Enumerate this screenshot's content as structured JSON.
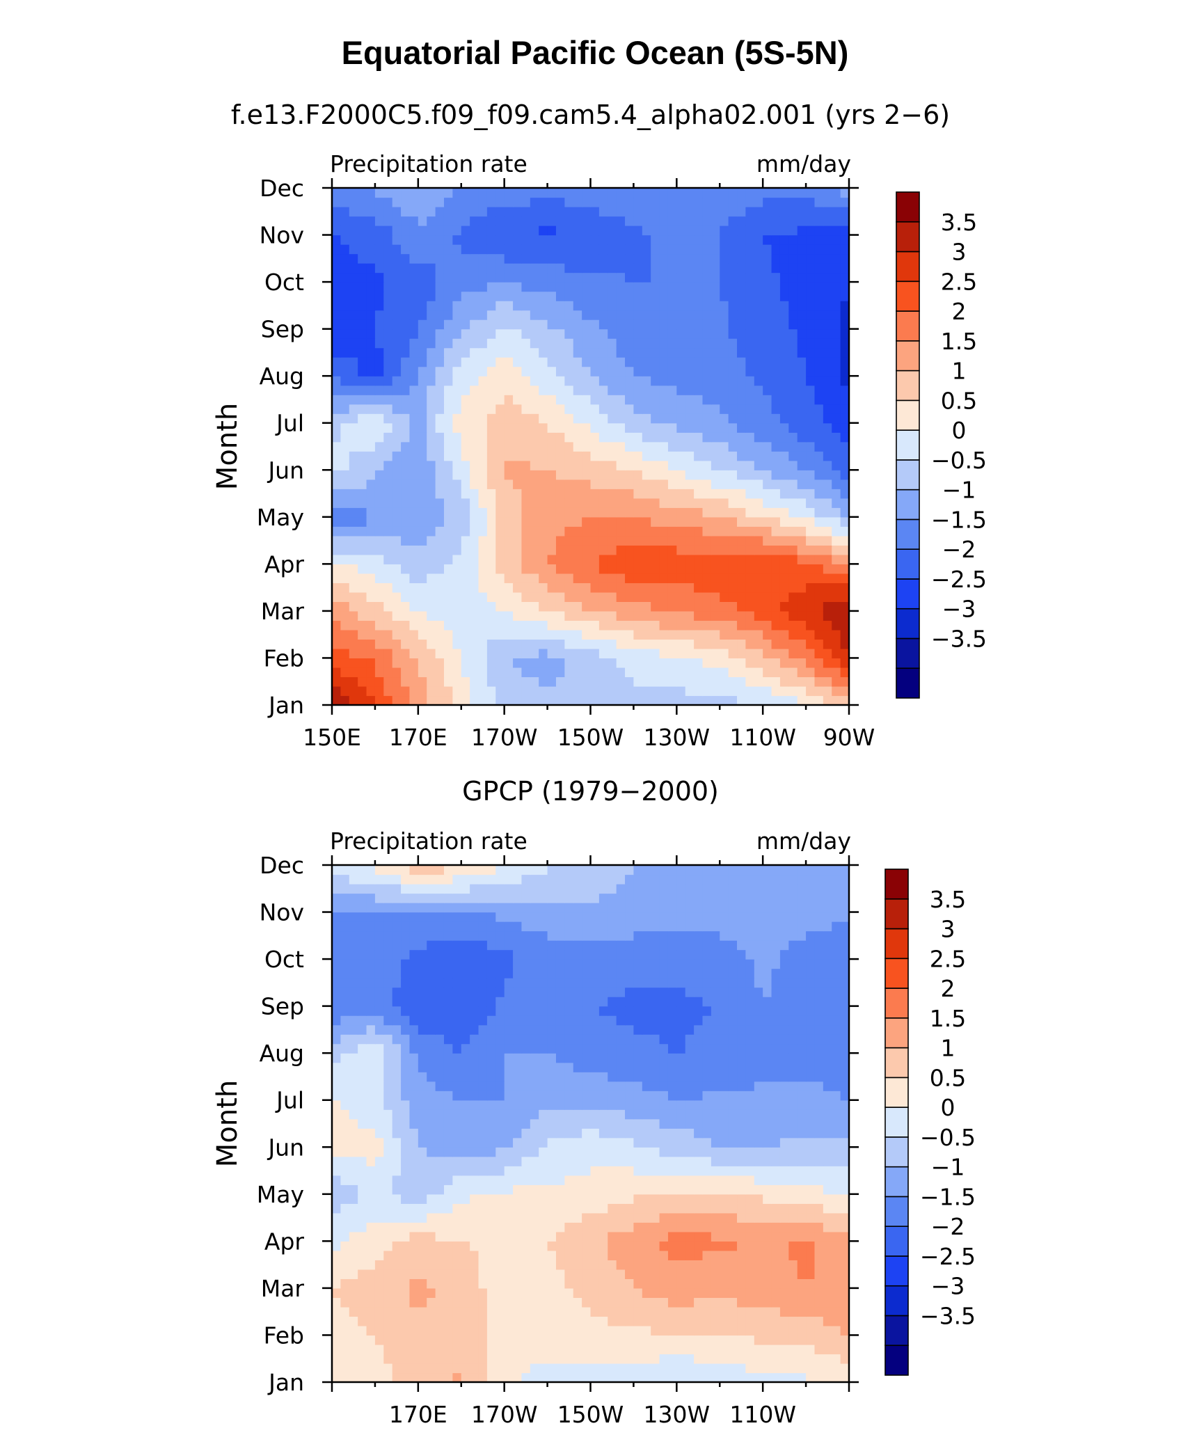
{
  "figure": {
    "title": "Equatorial Pacific Ocean (5S-5N)"
  },
  "colors": {
    "levels": [
      -4,
      -3.5,
      -3,
      -2.5,
      -2,
      -1.5,
      -1,
      -0.5,
      0,
      0.5,
      1,
      1.5,
      2,
      2.5,
      3,
      3.5,
      4
    ],
    "palette": [
      "#04007f",
      "#0a149f",
      "#0c2bcf",
      "#1d43f3",
      "#3a66f1",
      "#5b86f3",
      "#85a8f8",
      "#b4caf9",
      "#d8e8fc",
      "#fde8d6",
      "#fcc9ad",
      "#fca47f",
      "#fb7b4f",
      "#f8531f",
      "#e0370c",
      "#b8200a",
      "#8a0205"
    ]
  },
  "chart_data": [
    {
      "type": "heatmap",
      "title": "f.e13.F2000C5.f09_f09.cam5.4_alpha02.001 (yrs 2−6)",
      "left_label": "Precipitation rate",
      "right_label": "mm/day",
      "ylabel": "Month",
      "x_ticks": [
        "150E",
        "170E",
        "170W",
        "150W",
        "130W",
        "110W",
        "90W"
      ],
      "x_tick_lon": [
        150,
        170,
        190,
        210,
        230,
        250,
        270
      ],
      "y_ticks": [
        "Jan",
        "Feb",
        "Mar",
        "Apr",
        "May",
        "Jun",
        "Jul",
        "Aug",
        "Sep",
        "Oct",
        "Nov",
        "Dec"
      ],
      "xlim": [
        150,
        270
      ],
      "colorbar_labels": [
        "3.5",
        "3",
        "2.5",
        "2",
        "1.5",
        "1",
        "0.5",
        "0",
        "−0.5",
        "−1",
        "−1.5",
        "−2",
        "−2.5",
        "−3",
        "−3.5"
      ],
      "lon": [
        150,
        160,
        170,
        180,
        190,
        200,
        210,
        220,
        230,
        240,
        250,
        260,
        270
      ],
      "values": [
        [
          4.0,
          3.0,
          1.8,
          0.8,
          -0.2,
          -0.4,
          -0.3,
          -0.2,
          -0.2,
          -0.2,
          0.0,
          0.4,
          1.2
        ],
        [
          2.8,
          2.4,
          1.5,
          0.5,
          -0.5,
          -0.7,
          -0.3,
          0.2,
          0.4,
          0.7,
          1.4,
          2.2,
          3.5
        ],
        [
          1.8,
          1.2,
          0.5,
          0.2,
          0.5,
          1.0,
          1.5,
          1.8,
          2.1,
          2.3,
          2.7,
          3.4,
          4.0
        ],
        [
          0.6,
          0.2,
          -0.3,
          0.2,
          1.2,
          2.0,
          2.5,
          2.9,
          2.8,
          2.9,
          3.0,
          2.6,
          2.0
        ],
        [
          -1.5,
          -1.0,
          -0.8,
          -0.4,
          1.2,
          1.8,
          2.0,
          2.0,
          1.8,
          1.5,
          1.0,
          0.4,
          -0.5
        ],
        [
          0.2,
          -0.4,
          -1.0,
          0.3,
          1.6,
          1.5,
          1.3,
          1.0,
          0.5,
          0.0,
          -0.5,
          -1.0,
          -1.8
        ],
        [
          -0.2,
          0.5,
          -0.6,
          0.7,
          1.3,
          1.0,
          0.4,
          -0.3,
          -0.6,
          -0.9,
          -1.3,
          -1.8,
          -2.2
        ],
        [
          -1.5,
          -2.2,
          -1.0,
          0.3,
          0.8,
          0.2,
          -0.5,
          -1.0,
          -1.2,
          -1.3,
          -1.6,
          -2.0,
          -2.6
        ],
        [
          -2.5,
          -2.0,
          -1.5,
          -0.6,
          0.1,
          -0.4,
          -0.9,
          -1.3,
          -1.4,
          -1.4,
          -1.8,
          -2.1,
          -2.6
        ],
        [
          -2.2,
          -2.1,
          -1.8,
          -1.2,
          -1.0,
          -1.2,
          -1.4,
          -1.5,
          -1.5,
          -1.5,
          -1.9,
          -2.2,
          -2.5
        ],
        [
          -2.0,
          -1.8,
          -1.1,
          -1.6,
          -2.0,
          -2.1,
          -1.9,
          -1.6,
          -1.4,
          -1.5,
          -2.0,
          -2.1,
          -2.3
        ],
        [
          -1.2,
          -0.9,
          -0.6,
          -1.0,
          -1.2,
          -1.3,
          -1.2,
          -1.1,
          -1.0,
          -1.1,
          -1.3,
          -1.3,
          -0.8
        ]
      ]
    },
    {
      "type": "heatmap",
      "title": "GPCP (1979−2000)",
      "left_label": "Precipitation rate",
      "right_label": "mm/day",
      "ylabel": "Month",
      "x_ticks": [
        "170E",
        "170W",
        "150W",
        "130W",
        "110W"
      ],
      "x_tick_lon": [
        170,
        190,
        210,
        230,
        250
      ],
      "y_ticks": [
        "Jan",
        "Feb",
        "Mar",
        "Apr",
        "May",
        "Jun",
        "Jul",
        "Aug",
        "Sep",
        "Oct",
        "Nov",
        "Dec"
      ],
      "xlim": [
        150,
        270
      ],
      "colorbar_labels": [
        "3.5",
        "3",
        "2.5",
        "2",
        "1.5",
        "1",
        "0.5",
        "0",
        "−0.5",
        "−1",
        "−1.5",
        "−2",
        "−2.5",
        "−3",
        "−3.5"
      ],
      "lon": [
        150,
        160,
        170,
        180,
        190,
        200,
        210,
        220,
        230,
        240,
        250,
        260,
        270
      ],
      "values": [
        [
          0.6,
          0.8,
          1.2,
          1.6,
          0.6,
          0.3,
          0.3,
          0.2,
          -0.1,
          0.2,
          0.3,
          0.4,
          0.6
        ],
        [
          0.8,
          1.0,
          1.4,
          1.3,
          0.8,
          0.7,
          0.8,
          0.9,
          1.0,
          1.0,
          1.1,
          1.2,
          1.5
        ],
        [
          1.0,
          1.2,
          1.6,
          1.4,
          0.6,
          0.8,
          1.2,
          1.5,
          1.8,
          1.6,
          1.8,
          2.0,
          1.8
        ],
        [
          0.4,
          0.8,
          1.2,
          1.0,
          0.8,
          1.0,
          1.4,
          1.8,
          2.2,
          2.1,
          1.9,
          2.1,
          1.6
        ],
        [
          -0.4,
          0.2,
          -0.3,
          0.4,
          0.6,
          0.6,
          0.7,
          0.9,
          1.0,
          1.0,
          0.9,
          0.7,
          0.4
        ],
        [
          0.6,
          0.7,
          -0.5,
          -0.8,
          -0.6,
          0.1,
          0.3,
          0.1,
          -0.2,
          -0.5,
          -0.5,
          -0.4,
          -0.3
        ],
        [
          0.6,
          0.2,
          -0.8,
          -1.0,
          -1.0,
          -0.6,
          -0.6,
          -0.8,
          -1.0,
          -0.9,
          -0.9,
          -0.9,
          -1.0
        ],
        [
          -0.2,
          0.4,
          -1.1,
          -1.5,
          -1.0,
          -1.0,
          -1.3,
          -1.4,
          -1.5,
          -1.4,
          -1.2,
          -1.1,
          -1.3
        ],
        [
          -1.4,
          -1.3,
          -1.9,
          -2.0,
          -1.4,
          -1.4,
          -1.5,
          -1.6,
          -1.6,
          -1.5,
          -1.0,
          -1.1,
          -1.4
        ],
        [
          -1.2,
          -1.2,
          -1.6,
          -2.0,
          -1.6,
          -1.3,
          -1.2,
          -1.3,
          -1.3,
          -1.2,
          -0.9,
          -1.2,
          -1.4
        ],
        [
          -1.0,
          -1.0,
          -1.1,
          -1.0,
          -0.9,
          -0.7,
          -0.6,
          -0.7,
          -0.8,
          -0.8,
          -0.8,
          -0.8,
          -0.9
        ],
        [
          0.2,
          0.7,
          1.4,
          1.1,
          0.5,
          0.1,
          -0.2,
          -0.5,
          -0.6,
          -0.7,
          -0.8,
          -0.7,
          -0.6
        ]
      ]
    }
  ]
}
